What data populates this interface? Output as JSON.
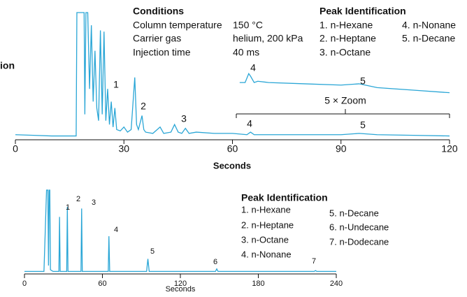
{
  "left_cut_label": "ion",
  "chart_data": [
    {
      "type": "line",
      "xlabel": "Seconds",
      "xlim": [
        0,
        120
      ],
      "xticks": [
        0,
        30,
        60,
        90,
        120
      ],
      "ylim": [
        0,
        100
      ],
      "x": [
        0,
        5,
        10,
        16,
        16.8,
        17,
        19,
        19.2,
        19.5,
        20,
        20.5,
        21,
        21.5,
        22,
        22.5,
        23,
        23.5,
        24,
        24.5,
        25,
        25.5,
        26,
        26.5,
        27,
        27.5,
        28,
        29,
        30,
        31,
        32,
        33,
        33.5,
        34,
        35,
        35.5,
        36,
        38,
        40,
        41,
        43,
        44,
        45,
        46,
        47,
        48,
        50,
        55,
        60,
        64,
        65,
        66,
        70,
        80,
        90,
        95,
        100,
        110,
        120
      ],
      "series": [
        {
          "color": "#2aa6d6",
          "values": [
            4,
            3.5,
            3,
            3,
            3,
            100,
            100,
            20,
            100,
            100,
            40,
            90,
            30,
            70,
            25,
            15,
            86,
            20,
            85,
            15,
            40,
            12,
            30,
            10,
            25,
            8,
            7,
            10,
            6,
            8,
            49,
            12,
            8,
            19,
            8,
            6,
            5,
            10,
            5,
            6,
            12,
            6,
            5,
            9,
            5,
            6,
            5,
            5,
            4,
            6,
            4,
            4,
            4,
            4,
            5,
            4,
            3.5,
            3
          ]
        },
        {
          "color": "#2aa6d6",
          "x": [
            62,
            63.5,
            64.5,
            65,
            66,
            67,
            70,
            80,
            90,
            95,
            100,
            110,
            120
          ],
          "values": [
            45,
            45,
            52,
            50,
            45,
            46,
            45,
            44,
            43,
            44,
            41,
            39,
            37
          ]
        }
      ],
      "peak_labels": [
        "1",
        "2",
        "3",
        "4",
        "5",
        "4",
        "5"
      ],
      "zoom_label": "5 × Zoom",
      "conditions": {
        "title": "Conditions",
        "rows": [
          [
            "Column temperature",
            "150 °C"
          ],
          [
            "Carrier gas",
            "helium, 200 kPa"
          ],
          [
            "Injection time",
            "40 ms"
          ]
        ]
      },
      "peak_identification": {
        "title": "Peak Identification",
        "items": [
          "1. n-Hexane",
          "4. n-Nonane",
          "2. n-Heptane",
          "5. n-Decane",
          "3. n-Octane"
        ]
      }
    },
    {
      "type": "line",
      "xlabel": "Seconds",
      "xlim": [
        0,
        240
      ],
      "xticks": [
        0,
        60,
        120,
        180,
        240
      ],
      "ylim": [
        0,
        100
      ],
      "x": [
        0,
        15,
        17,
        18,
        18.5,
        19,
        19.5,
        20,
        22,
        26.5,
        27,
        27.5,
        32.5,
        33,
        33.5,
        43.5,
        44,
        44.5,
        64.5,
        65,
        65.6,
        94,
        95,
        96,
        147,
        148,
        149,
        223,
        224,
        225,
        240
      ],
      "series": [
        {
          "color": "#2aa6d6",
          "values": [
            3,
            3,
            100,
            100,
            10,
            100,
            100,
            5,
            3,
            3,
            68,
            3,
            3,
            80,
            3,
            3,
            78,
            3,
            3,
            45,
            3,
            3,
            18,
            3,
            3,
            6,
            3,
            3,
            4,
            3,
            3
          ]
        }
      ],
      "peak_labels": [
        "1",
        "2",
        "3",
        "4",
        "5",
        "6",
        "7"
      ],
      "peak_identification": {
        "title": "Peak Identification",
        "items": [
          "1. n-Hexane",
          "2. n-Heptane",
          "3. n-Octane",
          "4. n-Nonane",
          "5. n-Decane",
          "6. n-Undecane",
          "7. n-Dodecane"
        ]
      }
    }
  ]
}
